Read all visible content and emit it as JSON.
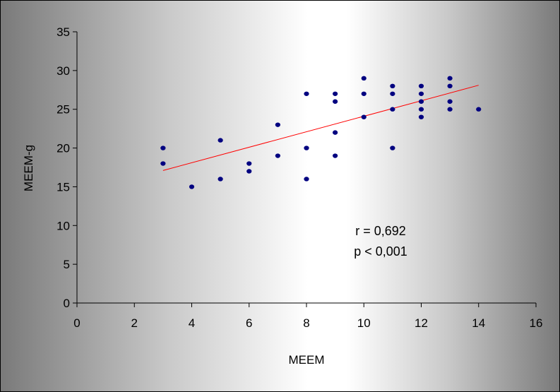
{
  "chart_data": {
    "type": "scatter",
    "title": "",
    "xlabel": "MEEM",
    "ylabel": "MEEM-g",
    "xlim": [
      0,
      16
    ],
    "ylim": [
      0,
      35
    ],
    "x_ticks": [
      0,
      2,
      4,
      6,
      8,
      10,
      12,
      14,
      16
    ],
    "y_ticks": [
      0,
      5,
      10,
      15,
      20,
      25,
      30,
      35
    ],
    "grid": false,
    "legend": "none",
    "marker_color": "#000080",
    "trendline_color": "#ff0000",
    "points": [
      {
        "x": 3,
        "y": 20
      },
      {
        "x": 3,
        "y": 18
      },
      {
        "x": 4,
        "y": 15
      },
      {
        "x": 5,
        "y": 21
      },
      {
        "x": 5,
        "y": 16
      },
      {
        "x": 6,
        "y": 18
      },
      {
        "x": 6,
        "y": 17
      },
      {
        "x": 7,
        "y": 23
      },
      {
        "x": 7,
        "y": 19
      },
      {
        "x": 8,
        "y": 27
      },
      {
        "x": 8,
        "y": 20
      },
      {
        "x": 8,
        "y": 16
      },
      {
        "x": 9,
        "y": 27
      },
      {
        "x": 9,
        "y": 26
      },
      {
        "x": 9,
        "y": 22
      },
      {
        "x": 9,
        "y": 19
      },
      {
        "x": 10,
        "y": 29
      },
      {
        "x": 10,
        "y": 27
      },
      {
        "x": 10,
        "y": 24
      },
      {
        "x": 11,
        "y": 28
      },
      {
        "x": 11,
        "y": 27
      },
      {
        "x": 11,
        "y": 25
      },
      {
        "x": 11,
        "y": 20
      },
      {
        "x": 12,
        "y": 28
      },
      {
        "x": 12,
        "y": 27
      },
      {
        "x": 12,
        "y": 26
      },
      {
        "x": 12,
        "y": 25
      },
      {
        "x": 12,
        "y": 24
      },
      {
        "x": 13,
        "y": 29
      },
      {
        "x": 13,
        "y": 28
      },
      {
        "x": 13,
        "y": 26
      },
      {
        "x": 13,
        "y": 25
      },
      {
        "x": 14,
        "y": 25
      }
    ],
    "trendline": {
      "x": [
        3,
        14
      ],
      "y": [
        17.1,
        28.1
      ]
    },
    "annotations": [
      "r = 0,692",
      "p < 0,001"
    ]
  }
}
